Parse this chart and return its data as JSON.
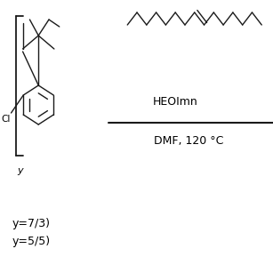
{
  "bg_color": "#ffffff",
  "line_color": "#1a1a1a",
  "text_color": "#000000",
  "lw": 1.0,
  "heoimn_label": "HEOImn",
  "dmf_label": "DMF, 120 °C",
  "bottom_label1": "y=7/3)",
  "bottom_label2": "y=5/5)"
}
